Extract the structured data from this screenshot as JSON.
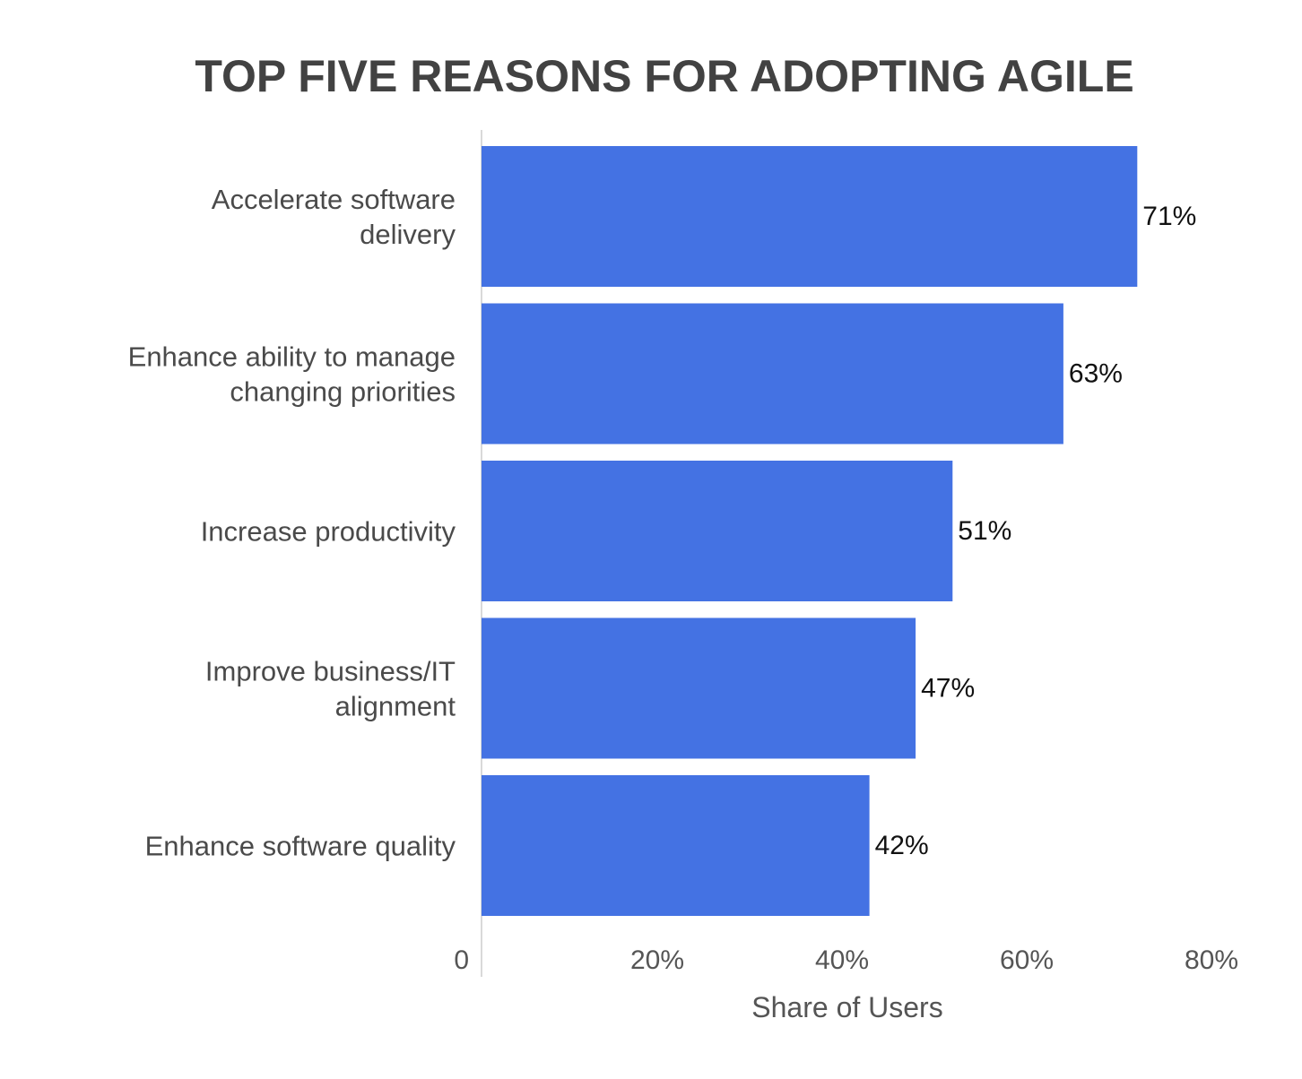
{
  "chart_data": {
    "type": "bar",
    "orientation": "horizontal",
    "title": "TOP FIVE REASONS FOR ADOPTING AGILE",
    "xlabel": "Share of Users",
    "ylabel": "",
    "categories": [
      [
        "Accelerate software",
        "delivery"
      ],
      [
        "Enhance ability to manage",
        "changing priorities"
      ],
      [
        "Increase productivity"
      ],
      [
        "Improve business/IT",
        "alignment"
      ],
      [
        "Enhance software quality"
      ]
    ],
    "values": [
      71,
      63,
      51,
      47,
      42
    ],
    "value_labels": [
      "71%",
      "63%",
      "51%",
      "47%",
      "42%"
    ],
    "xlim": [
      0,
      80
    ],
    "ticks": [
      0,
      20,
      40,
      60,
      80
    ],
    "tick_labels": [
      "0",
      "20%",
      "40%",
      "60%",
      "80%"
    ],
    "bar_color": "#4472e3",
    "axis_color": "#d9d9d9",
    "grid": false,
    "legend": "none"
  }
}
